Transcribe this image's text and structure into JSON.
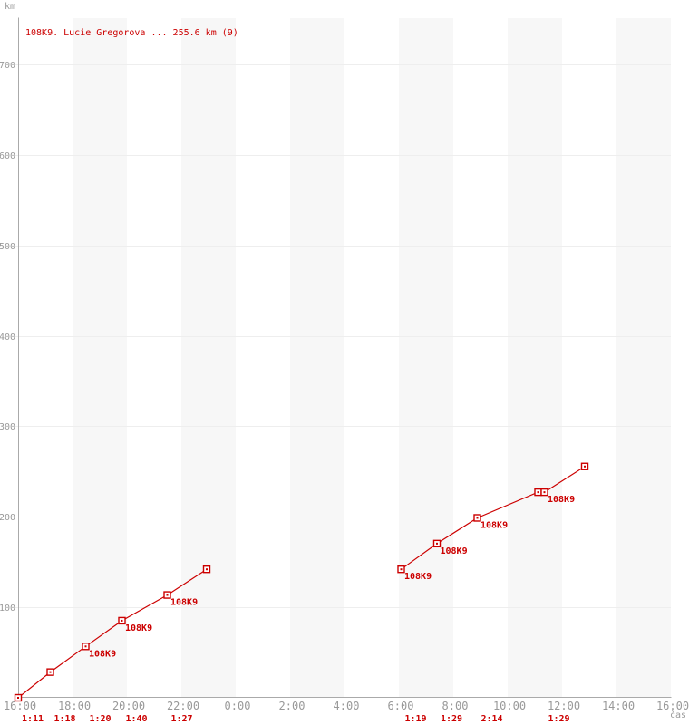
{
  "colors": {
    "series_red": "#cc0000",
    "band_gray": "#f7f7f7",
    "grid_gray": "#eeeeee",
    "axis_gray": "#aaaaaa",
    "tick_text_gray": "#999999"
  },
  "chart_data": {
    "type": "line",
    "title": "108K9. Lucie Gregorova ... 255.6 km (9)",
    "ylabel": "km",
    "xlabel": "čas",
    "x_ticks": [
      "16:00",
      "18:00",
      "20:00",
      "22:00",
      "0:00",
      "2:00",
      "4:00",
      "6:00",
      "8:00",
      "10:00",
      "12:00",
      "14:00",
      "16:00"
    ],
    "x_tick_step_hours": 2,
    "xlim_hours_from_start": [
      0,
      24
    ],
    "y_ticks": [
      100,
      200,
      300,
      400,
      500,
      600,
      700
    ],
    "ylim": [
      0,
      750
    ],
    "grid": "horizontal-gridlines-and-alternating-vertical-bands",
    "legend": "none",
    "series": [
      {
        "name": "108K9",
        "color": "#cc0000",
        "marker": "open-square",
        "segments": [
          {
            "points": [
              {
                "time": "16:00",
                "h": 0.0,
                "km": 0.0
              },
              {
                "time": "17:11",
                "h": 1.1833,
                "km": 28.4
              },
              {
                "time": "18:29",
                "h": 2.4833,
                "km": 56.8,
                "label": "108K9"
              },
              {
                "time": "19:49",
                "h": 3.8167,
                "km": 85.2,
                "label": "108K9"
              },
              {
                "time": "21:29",
                "h": 5.4833,
                "km": 113.6,
                "label": "108K9"
              },
              {
                "time": "22:56",
                "h": 6.9333,
                "km": 142.0
              }
            ]
          },
          {
            "points": [
              {
                "time": "6:05",
                "h": 14.0833,
                "km": 142.0,
                "label": "108K9"
              },
              {
                "time": "7:24",
                "h": 15.4,
                "km": 170.4,
                "label": "108K9"
              },
              {
                "time": "8:53",
                "h": 16.8833,
                "km": 198.8,
                "label": "108K9"
              },
              {
                "time": "11:07",
                "h": 19.1167,
                "km": 227.2
              },
              {
                "time": "11:21",
                "h": 19.35,
                "km": 227.2,
                "label": "108K9"
              },
              {
                "time": "12:50",
                "h": 20.8333,
                "km": 255.6
              }
            ]
          }
        ]
      }
    ],
    "leg_splits": [
      {
        "text": "1:11",
        "start_h": 0.0
      },
      {
        "text": "1:18",
        "start_h": 1.1833
      },
      {
        "text": "1:20",
        "start_h": 2.4833
      },
      {
        "text": "1:40",
        "start_h": 3.8167
      },
      {
        "text": "1:27",
        "start_h": 5.4833
      },
      {
        "text": "1:19",
        "start_h": 14.0833
      },
      {
        "text": "1:29",
        "start_h": 15.4
      },
      {
        "text": "2:14",
        "start_h": 16.8833
      },
      {
        "text": "1:29",
        "start_h": 19.35
      }
    ],
    "total_km": "255.6",
    "checkpoint_count": "9"
  }
}
